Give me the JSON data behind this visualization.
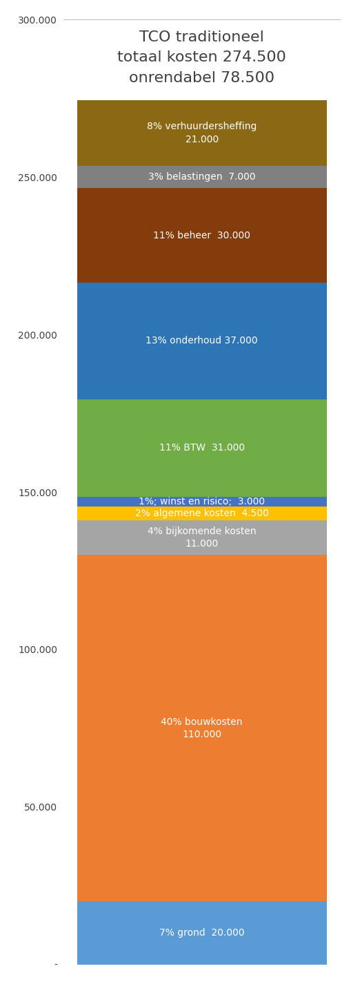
{
  "title_line1": "TCO traditioneel",
  "title_line2": "totaal kosten 274.500",
  "title_line3": "onrendabel 78.500",
  "segments": [
    {
      "label": "7% grond  20.000",
      "value": 20000,
      "color": "#5B9BD5"
    },
    {
      "label": "40% bouwkosten\n110.000",
      "value": 110000,
      "color": "#ED7D31"
    },
    {
      "label": "4% bijkomende kosten\n11.000",
      "value": 11000,
      "color": "#A5A5A5"
    },
    {
      "label": "2% algemene kosten  4.500",
      "value": 4500,
      "color": "#FFC000"
    },
    {
      "label": "1%; winst en risico;  3.000",
      "value": 3000,
      "color": "#4472C4"
    },
    {
      "label": "11% BTW  31.000",
      "value": 31000,
      "color": "#70AD47"
    },
    {
      "label": "13% onderhoud 37.000",
      "value": 37000,
      "color": "#2E75B6"
    },
    {
      "label": "11% beheer  30.000",
      "value": 30000,
      "color": "#843C0C"
    },
    {
      "label": "3% belastingen  7.000",
      "value": 7000,
      "color": "#808080"
    },
    {
      "label": "8% verhuurdersheffing\n21.000",
      "value": 21000,
      "color": "#8B6914"
    }
  ],
  "ylim": [
    0,
    300000
  ],
  "yticks": [
    0,
    50000,
    100000,
    150000,
    200000,
    250000,
    300000
  ],
  "ytick_labels": [
    "-",
    "50.000",
    "100.000",
    "150.000",
    "200.000",
    "250.000",
    "300.000"
  ],
  "background_color": "#FFFFFF",
  "label_color": "#FFFFFF",
  "title_color": "#404040",
  "title_fontsize": 16,
  "label_fontsize": 10,
  "ytick_fontsize": 10,
  "gridline_color": "#BFBFBF"
}
